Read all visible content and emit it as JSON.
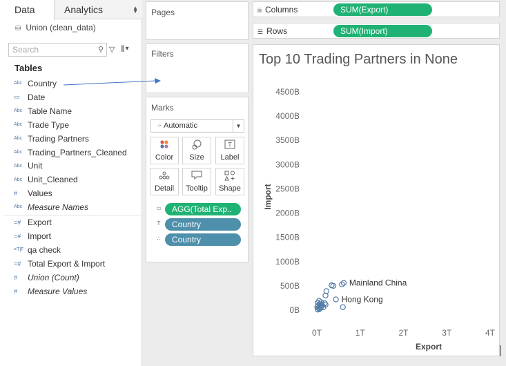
{
  "tabs": [
    {
      "label": "Data",
      "active": true
    },
    {
      "label": "Analytics",
      "active": false
    }
  ],
  "datasource": {
    "label": "Union (clean_data)",
    "icon": "database-icon"
  },
  "search": {
    "placeholder": "Search"
  },
  "tables_heading": "Tables",
  "dimensions": [
    {
      "label": "Country",
      "icon": "Abc"
    },
    {
      "label": "Date",
      "icon": "calendar"
    },
    {
      "label": "Table Name",
      "icon": "Abc"
    },
    {
      "label": "Trade Type",
      "icon": "Abc"
    },
    {
      "label": "Trading Partners",
      "icon": "Abc"
    },
    {
      "label": "Trading_Partners_Cleaned",
      "icon": "Abc"
    },
    {
      "label": "Unit",
      "icon": "Abc"
    },
    {
      "label": "Unit_Cleaned",
      "icon": "Abc"
    },
    {
      "label": "Values",
      "icon": "#"
    },
    {
      "label": "Measure Names",
      "icon": "Abc",
      "italic": true
    }
  ],
  "measures": [
    {
      "label": "Export",
      "icon": "=#"
    },
    {
      "label": "Import",
      "icon": "=#"
    },
    {
      "label": "qa check",
      "icon": "=T|F"
    },
    {
      "label": "Total Export & Import",
      "icon": "=#"
    },
    {
      "label": "Union (Count)",
      "icon": "#",
      "italic": true
    },
    {
      "label": "Measure Values",
      "icon": "#",
      "italic": true
    }
  ],
  "pages_title": "Pages",
  "filters_title": "Filters",
  "marks": {
    "title": "Marks",
    "type": "Automatic",
    "buttons": [
      {
        "label": "Color",
        "icon": "color-dots-icon"
      },
      {
        "label": "Size",
        "icon": "size-icon"
      },
      {
        "label": "Label",
        "icon": "label-icon"
      },
      {
        "label": "Detail",
        "icon": "detail-icon"
      },
      {
        "label": "Tooltip",
        "icon": "tooltip-icon"
      },
      {
        "label": "Shape",
        "icon": "shape-icon"
      }
    ],
    "pills": [
      {
        "label": "AGG(Total Exp..",
        "color": "#1fb274",
        "icon": "tooltip-icon"
      },
      {
        "label": "Country",
        "color": "#4e8fab",
        "icon": "label-icon"
      },
      {
        "label": "Country",
        "color": "#4e8fab",
        "icon": "detail-icon"
      }
    ]
  },
  "columns": {
    "label": "Columns",
    "pill": "SUM(Export)"
  },
  "rows": {
    "label": "Rows",
    "pill": "SUM(Import)"
  },
  "chart_data": {
    "type": "scatter",
    "title": "Top 10 Trading Partners in None",
    "xlabel": "Export",
    "ylabel": "Import",
    "x_unit": "T",
    "y_unit": "B",
    "xlim": [
      0,
      4
    ],
    "ylim": [
      0,
      4500
    ],
    "x_ticks": [
      "0T",
      "1T",
      "2T",
      "3T",
      "4T"
    ],
    "y_ticks": [
      "0B",
      "500B",
      "1000B",
      "1500B",
      "2000B",
      "2500B",
      "3000B",
      "3500B",
      "4000B",
      "4500B"
    ],
    "grid": false,
    "marker_color": "#4e79a7",
    "points": [
      {
        "x": 0.62,
        "y": 560,
        "label": "Mainland China"
      },
      {
        "x": 0.44,
        "y": 220,
        "label": "Hong Kong"
      },
      {
        "x": 0.58,
        "y": 530
      },
      {
        "x": 0.38,
        "y": 500
      },
      {
        "x": 0.34,
        "y": 510
      },
      {
        "x": 0.22,
        "y": 390
      },
      {
        "x": 0.2,
        "y": 300
      },
      {
        "x": 0.6,
        "y": 60
      },
      {
        "x": 0.18,
        "y": 140
      },
      {
        "x": 0.2,
        "y": 110
      },
      {
        "x": 0.15,
        "y": 60
      },
      {
        "x": 0.1,
        "y": 160
      },
      {
        "x": 0.05,
        "y": 190
      },
      {
        "x": 0.02,
        "y": 150
      },
      {
        "x": 0.01,
        "y": 60
      },
      {
        "x": 0.03,
        "y": 90
      },
      {
        "x": 0.07,
        "y": 120
      },
      {
        "x": 0.04,
        "y": 40
      },
      {
        "x": 0.08,
        "y": 80
      },
      {
        "x": 0.06,
        "y": 20
      },
      {
        "x": 0.12,
        "y": 100
      },
      {
        "x": 0.02,
        "y": 10
      },
      {
        "x": 0.09,
        "y": 50
      }
    ]
  }
}
